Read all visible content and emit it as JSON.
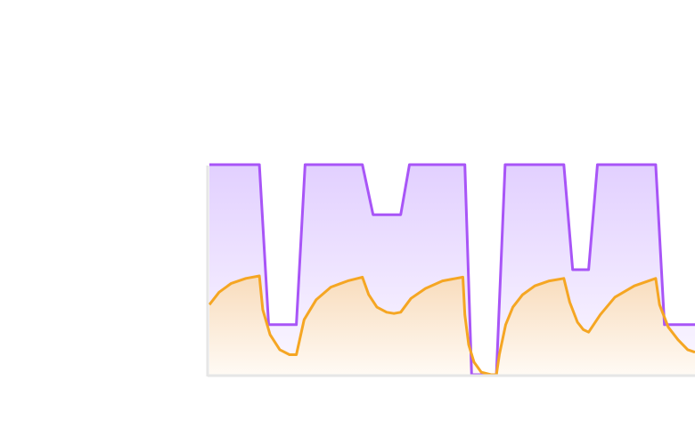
{
  "chart_data": {
    "type": "area",
    "title": "",
    "xlabel": "",
    "ylabel": "",
    "xlim": [
      0,
      100
    ],
    "ylim": [
      0,
      100
    ],
    "grid": false,
    "legend": "none",
    "series": [
      {
        "color": "#a855f7",
        "fill_top": "#e2d0ff",
        "fill_bottom": "#fbf8ff",
        "x": [
          0,
          10.3,
          12.2,
          17.9,
          19.7,
          31.5,
          33.7,
          39.4,
          41.2,
          52.6,
          54.0,
          59.1,
          60.9,
          73.0,
          74.8,
          78.1,
          79.9,
          91.9,
          93.7,
          100
        ],
        "y": [
          84,
          84,
          20,
          20,
          84,
          84,
          64,
          64,
          84,
          84,
          0,
          0,
          84,
          84,
          42,
          42,
          84,
          84,
          20,
          20
        ]
      },
      {
        "color": "#f5a623",
        "fill_top": "#f8dcbc",
        "fill_bottom": "#fffaf4",
        "x": [
          0,
          2,
          4.5,
          7.5,
          10.3,
          11.0,
          12.5,
          14.5,
          16.5,
          17.9,
          19.5,
          22.0,
          25.0,
          28.5,
          31.5,
          32.8,
          34.5,
          36.5,
          38.0,
          39.4,
          41.5,
          44.5,
          48.0,
          52.2,
          52.6,
          53.4,
          54.5,
          56.0,
          58.0,
          59.1,
          59.7,
          61.0,
          62.5,
          64.5,
          67.0,
          70.0,
          73.0,
          74.2,
          75.8,
          77.0,
          78.1,
          80.5,
          83.5,
          87.5,
          91.9,
          92.7,
          94.5,
          96.5,
          98.5,
          100
        ],
        "y": [
          28,
          33,
          36.5,
          38.5,
          39.5,
          26,
          16,
          10,
          8,
          8,
          22,
          30,
          35,
          37.5,
          39,
          32,
          27,
          25,
          24.5,
          25,
          30.5,
          34.5,
          37.5,
          39,
          24,
          12,
          5,
          1,
          0,
          0,
          8,
          20,
          27,
          32,
          35.5,
          37.5,
          38.5,
          29,
          21,
          18,
          17,
          24,
          31,
          35.5,
          38.5,
          28,
          19,
          14,
          10,
          9
        ]
      }
    ]
  }
}
